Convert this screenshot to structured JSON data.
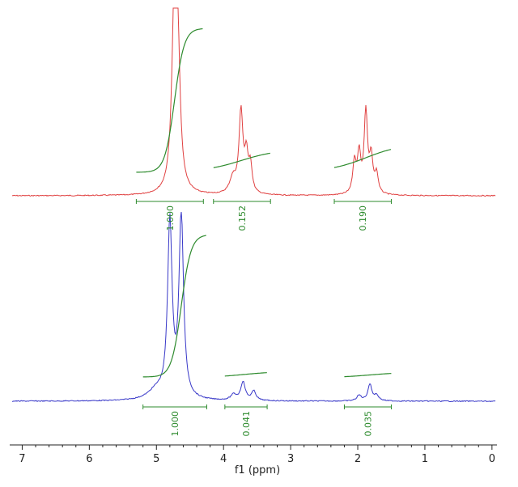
{
  "chart_data": {
    "type": "line",
    "xlabel": "f1 (ppm)",
    "xlim": [
      7.15,
      -0.05
    ],
    "x_reversed": true,
    "major_ticks": [
      7,
      6,
      5,
      4,
      3,
      2,
      1,
      0
    ],
    "tick_labels": [
      "7",
      "6",
      "5",
      "4",
      "3",
      "2",
      "1",
      "0"
    ],
    "minor_tick_step": 0.2,
    "integral_color": "#2e8b2e",
    "spectra": [
      {
        "color": "#e04040",
        "peaks": [
          {
            "ppm": 4.73,
            "height": 1.0,
            "width": 0.045,
            "clipped": true
          },
          {
            "ppm": 4.68,
            "height": 0.55,
            "width": 0.04,
            "clipped": true
          },
          {
            "ppm": 3.74,
            "height": 0.42,
            "width": 0.035
          },
          {
            "ppm": 3.66,
            "height": 0.18,
            "width": 0.03
          },
          {
            "ppm": 3.6,
            "height": 0.14,
            "width": 0.03
          },
          {
            "ppm": 3.86,
            "height": 0.08,
            "width": 0.06
          },
          {
            "ppm": 2.05,
            "height": 0.16,
            "width": 0.03
          },
          {
            "ppm": 1.98,
            "height": 0.2,
            "width": 0.03
          },
          {
            "ppm": 1.88,
            "height": 0.42,
            "width": 0.03
          },
          {
            "ppm": 1.8,
            "height": 0.18,
            "width": 0.03
          },
          {
            "ppm": 1.72,
            "height": 0.1,
            "width": 0.03
          }
        ],
        "integrals": [
          {
            "from": 5.3,
            "to": 4.3,
            "label": "1.000"
          },
          {
            "from": 4.15,
            "to": 3.3,
            "label": "0.152"
          },
          {
            "from": 2.35,
            "to": 1.5,
            "label": "0.190"
          }
        ]
      },
      {
        "color": "#3838c8",
        "peaks": [
          {
            "ppm": 4.8,
            "height": 0.95,
            "width": 0.04
          },
          {
            "ppm": 4.63,
            "height": 1.0,
            "width": 0.04
          },
          {
            "ppm": 5.0,
            "height": 0.05,
            "width": 0.15
          },
          {
            "ppm": 3.71,
            "height": 0.1,
            "width": 0.04
          },
          {
            "ppm": 3.55,
            "height": 0.05,
            "width": 0.04
          },
          {
            "ppm": 3.85,
            "height": 0.03,
            "width": 0.05
          },
          {
            "ppm": 1.98,
            "height": 0.03,
            "width": 0.04
          },
          {
            "ppm": 1.82,
            "height": 0.09,
            "width": 0.035
          },
          {
            "ppm": 1.72,
            "height": 0.03,
            "width": 0.04
          }
        ],
        "integrals": [
          {
            "from": 5.2,
            "to": 4.25,
            "label": "1.000"
          },
          {
            "from": 3.98,
            "to": 3.35,
            "label": "0.041"
          },
          {
            "from": 2.2,
            "to": 1.5,
            "label": "0.035"
          }
        ]
      }
    ]
  }
}
